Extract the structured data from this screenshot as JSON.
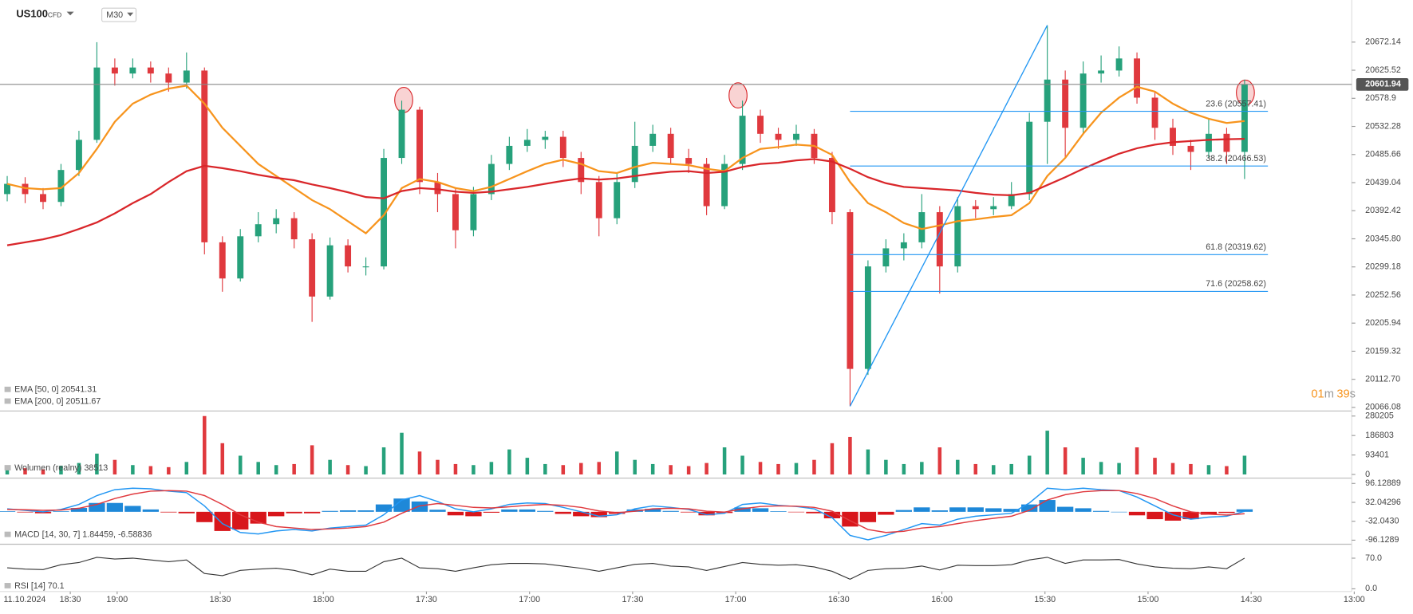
{
  "header": {
    "symbol": "US100",
    "instrument_type": "CFD",
    "timeframe": "M30"
  },
  "countdown": {
    "minutes": "01",
    "min_unit": "m",
    "seconds": "39",
    "sec_unit": "s"
  },
  "time_axis": {
    "date": "11.10.2024",
    "labels": [
      "18:30",
      "19:00",
      "18:30",
      "18:00",
      "17:30",
      "17:00",
      "17:30",
      "17:00",
      "16:30",
      "16:00",
      "15:30",
      "15:00",
      "14:30",
      "13:00"
    ]
  },
  "chart_data": [
    {
      "type": "candlestick",
      "up_color": "#26a17b",
      "down_color": "#e0393e",
      "ylim": [
        20062.4,
        20742.0
      ],
      "yticks": [
        20672.14,
        20625.52,
        20578.9,
        20532.28,
        20485.66,
        20439.04,
        20392.42,
        {
          "value": 20345.8,
          "label": "20345.80"
        },
        20299.18,
        20252.56,
        20205.94,
        20159.32,
        {
          "value": 20112.7,
          "label": "20112.70"
        },
        20066.08
      ],
      "last_price": 20601.94,
      "open": [
        20420,
        20437,
        20420,
        20407,
        20460,
        20510,
        20630,
        20620,
        20630,
        20620,
        20605,
        20625,
        20340,
        20280,
        20350,
        20370,
        20380,
        20345,
        20250,
        20335,
        20300,
        20300,
        20480,
        20560,
        20440,
        20420,
        20360,
        20420,
        20470,
        20500,
        20510,
        20515,
        20480,
        20440,
        20380,
        20440,
        20500,
        20520,
        20480,
        20470,
        20400,
        20470,
        20550,
        20520,
        20510,
        20520,
        20480,
        20390,
        20130,
        20300,
        20330,
        20340,
        20390,
        20300,
        20400,
        20395,
        20400,
        20420,
        20540,
        20610,
        20530,
        20620,
        20625,
        20645,
        20580,
        20530,
        20500,
        20490,
        20520,
        20490
      ],
      "high": [
        20450,
        20448,
        20430,
        20470,
        20525,
        20672,
        20645,
        20645,
        20640,
        20630,
        20655,
        20630,
        20350,
        20362,
        20390,
        20395,
        20390,
        20355,
        20348,
        20345,
        20315,
        20495,
        20575,
        20565,
        20455,
        20430,
        20432,
        20485,
        20515,
        20528,
        20525,
        20525,
        20490,
        20450,
        20455,
        20540,
        20535,
        20530,
        20495,
        20480,
        20485,
        20575,
        20560,
        20530,
        20535,
        20528,
        20490,
        20395,
        20310,
        20345,
        20355,
        20420,
        20400,
        20415,
        20410,
        20415,
        20440,
        20555,
        20700,
        20625,
        20640,
        20650,
        20665,
        20655,
        20590,
        20545,
        20510,
        20545,
        20530,
        20610
      ],
      "low": [
        20408,
        20405,
        20395,
        20400,
        20450,
        20505,
        20600,
        20612,
        20605,
        20590,
        20595,
        20320,
        20258,
        20275,
        20340,
        20355,
        20330,
        20208,
        20245,
        20290,
        20285,
        20295,
        20470,
        20420,
        20390,
        20330,
        20350,
        20410,
        20460,
        20490,
        20495,
        20465,
        20420,
        20350,
        20370,
        20430,
        20490,
        20470,
        20455,
        20385,
        20395,
        20460,
        20505,
        20495,
        20500,
        20470,
        20370,
        20068,
        20120,
        20290,
        20310,
        20330,
        20255,
        20290,
        20380,
        20385,
        20395,
        20410,
        20470,
        20480,
        20520,
        20605,
        20615,
        20570,
        20510,
        20485,
        20460,
        20480,
        20470,
        20445
      ],
      "close": [
        20437,
        20420,
        20407,
        20460,
        20510,
        20630,
        20620,
        20630,
        20620,
        20605,
        20625,
        20340,
        20280,
        20350,
        20370,
        20380,
        20345,
        20250,
        20335,
        20300,
        20300,
        20480,
        20560,
        20440,
        20420,
        20360,
        20420,
        20470,
        20500,
        20510,
        20515,
        20480,
        20440,
        20380,
        20440,
        20500,
        20520,
        20480,
        20470,
        20400,
        20470,
        20550,
        20520,
        20510,
        20520,
        20480,
        20390,
        20130,
        20300,
        20330,
        20340,
        20390,
        20300,
        20400,
        20395,
        20400,
        20420,
        20540,
        20610,
        20530,
        20620,
        20625,
        20645,
        20580,
        20530,
        20500,
        20490,
        20520,
        20490,
        20601.94
      ],
      "series": [
        {
          "name": "EMA [50, 0] 20541.31",
          "color": "#f7941d",
          "values": [
            20437,
            20430,
            20428,
            20430,
            20455,
            20495,
            20540,
            20570,
            20585,
            20595,
            20600,
            20570,
            20530,
            20500,
            20470,
            20450,
            20430,
            20410,
            20395,
            20375,
            20355,
            20385,
            20430,
            20445,
            20440,
            20430,
            20425,
            20432,
            20445,
            20458,
            20470,
            20477,
            20470,
            20458,
            20455,
            20465,
            20472,
            20470,
            20468,
            20462,
            20458,
            20480,
            20495,
            20498,
            20502,
            20500,
            20485,
            20440,
            20405,
            20390,
            20372,
            20362,
            20368,
            20375,
            20378,
            20382,
            20385,
            20405,
            20450,
            20480,
            20520,
            20555,
            20580,
            20598,
            20590,
            20570,
            20555,
            20545,
            20538,
            20541.31
          ]
        },
        {
          "name": "EMA [200, 0] 20511.67",
          "color": "#d9262a",
          "values": [
            20335,
            20340,
            20345,
            20352,
            20362,
            20373,
            20388,
            20405,
            20420,
            20440,
            20458,
            20467,
            20463,
            20458,
            20452,
            20447,
            20443,
            20436,
            20430,
            20423,
            20415,
            20413,
            20425,
            20430,
            20428,
            20424,
            20422,
            20424,
            20428,
            20432,
            20437,
            20442,
            20446,
            20444,
            20446,
            20450,
            20454,
            20457,
            20458,
            20455,
            20457,
            20465,
            20470,
            20472,
            20476,
            20478,
            20474,
            20462,
            20448,
            20438,
            20432,
            20430,
            20428,
            20426,
            20422,
            20419,
            20418,
            20422,
            20435,
            20448,
            20462,
            20475,
            20487,
            20496,
            20502,
            20506,
            20508,
            20510,
            20511,
            20511.67
          ]
        }
      ],
      "fib_color": "#2196f3",
      "fib_levels": [
        {
          "value": 20557.41,
          "label": "23.6 (20557.41)"
        },
        {
          "value": 20466.53,
          "label": "38.2 (20466.53)"
        },
        {
          "value": 20319.62,
          "label": "61.8 (20319.62)"
        },
        {
          "value": 20258.62,
          "label": "71.6 (20258.62)"
        }
      ]
    },
    {
      "type": "volume",
      "label": "Wolumen  (realny)  38513",
      "ylim": [
        0,
        298000
      ],
      "yticks": [
        280205,
        186803,
        93401,
        0
      ],
      "values": [
        38000,
        30000,
        25000,
        42000,
        55000,
        100000,
        70000,
        45000,
        40000,
        35000,
        60000,
        280205,
        150000,
        90000,
        60000,
        45000,
        50000,
        140000,
        70000,
        45000,
        40000,
        130000,
        200000,
        110000,
        70000,
        50000,
        45000,
        60000,
        120000,
        80000,
        50000,
        45000,
        55000,
        60000,
        110000,
        70000,
        50000,
        45000,
        40000,
        55000,
        130000,
        90000,
        60000,
        50000,
        55000,
        70000,
        150000,
        180000,
        120000,
        70000,
        50000,
        60000,
        130000,
        70000,
        50000,
        45000,
        50000,
        90000,
        210000,
        130000,
        80000,
        60000,
        55000,
        130000,
        80000,
        55000,
        50000,
        45000,
        40000,
        90000
      ]
    },
    {
      "type": "macd",
      "label": "MACD [14, 30, 7]  1.84459, -6.58836",
      "ylim": [
        -105.3,
        108.3
      ],
      "yticks": [
        96.12889,
        32.04296,
        {
          "value": -32.043,
          "label": "-32.0430"
        },
        -96.1289
      ],
      "macd_color": "#2196f3",
      "signal_color": "#e0393e",
      "positive_color": "#1e88d8",
      "negative_color": "#d8161b",
      "macd": [
        10,
        5,
        0,
        8,
        25,
        55,
        75,
        80,
        78,
        70,
        65,
        20,
        -40,
        -70,
        -75,
        -65,
        -60,
        -65,
        -55,
        -50,
        -45,
        -10,
        40,
        55,
        35,
        10,
        0,
        10,
        25,
        30,
        28,
        15,
        0,
        -15,
        -10,
        10,
        20,
        15,
        8,
        -10,
        -5,
        25,
        30,
        22,
        18,
        10,
        -20,
        -80,
        -95,
        -80,
        -60,
        -40,
        -45,
        -25,
        -15,
        -10,
        -5,
        30,
        80,
        75,
        80,
        75,
        72,
        50,
        20,
        -10,
        -25,
        -18,
        -15,
        1.84459
      ],
      "signal": [
        8,
        7,
        5,
        6,
        12,
        25,
        45,
        60,
        70,
        72,
        70,
        55,
        25,
        -10,
        -35,
        -50,
        -55,
        -60,
        -58,
        -55,
        -50,
        -35,
        -5,
        20,
        28,
        22,
        15,
        13,
        17,
        22,
        25,
        22,
        15,
        3,
        -3,
        2,
        10,
        12,
        10,
        2,
        -1,
        10,
        18,
        20,
        19,
        15,
        2,
        -30,
        -60,
        -70,
        -66,
        -55,
        -50,
        -40,
        -30,
        -22,
        -15,
        5,
        40,
        58,
        68,
        72,
        72,
        62,
        45,
        20,
        0,
        -8,
        -11,
        -6.58836
      ],
      "histogram": [
        2,
        -2,
        -5,
        2,
        13,
        30,
        30,
        20,
        8,
        -2,
        -5,
        -35,
        -65,
        -60,
        -40,
        -15,
        -5,
        -5,
        3,
        5,
        5,
        25,
        45,
        35,
        7,
        -12,
        -15,
        -3,
        8,
        8,
        3,
        -7,
        -15,
        -18,
        -7,
        8,
        10,
        3,
        -2,
        -12,
        -4,
        15,
        12,
        2,
        -1,
        -5,
        -22,
        -50,
        -35,
        -10,
        6,
        15,
        5,
        15,
        15,
        12,
        10,
        25,
        40,
        17,
        12,
        3,
        0,
        -12,
        -25,
        -30,
        -25,
        -10,
        -4,
        8.43
      ]
    },
    {
      "type": "line",
      "label": "RSI [14]  70.1",
      "color": "#333333",
      "ylim": [
        -2,
        98.8
      ],
      "yticks": [
        {
          "value": 70,
          "label": "70.0"
        },
        {
          "value": 0,
          "label": "0.0"
        }
      ],
      "values": [
        48,
        45,
        44,
        55,
        60,
        72,
        68,
        70,
        66,
        62,
        66,
        35,
        30,
        42,
        45,
        47,
        42,
        32,
        45,
        40,
        40,
        62,
        70,
        48,
        46,
        40,
        48,
        55,
        58,
        58,
        57,
        52,
        47,
        40,
        48,
        56,
        58,
        52,
        50,
        42,
        51,
        60,
        56,
        54,
        55,
        50,
        40,
        22,
        42,
        46,
        47,
        52,
        43,
        54,
        53,
        53,
        55,
        66,
        72,
        58,
        66,
        66,
        67,
        57,
        50,
        47,
        46,
        50,
        46,
        70.1
      ]
    }
  ]
}
